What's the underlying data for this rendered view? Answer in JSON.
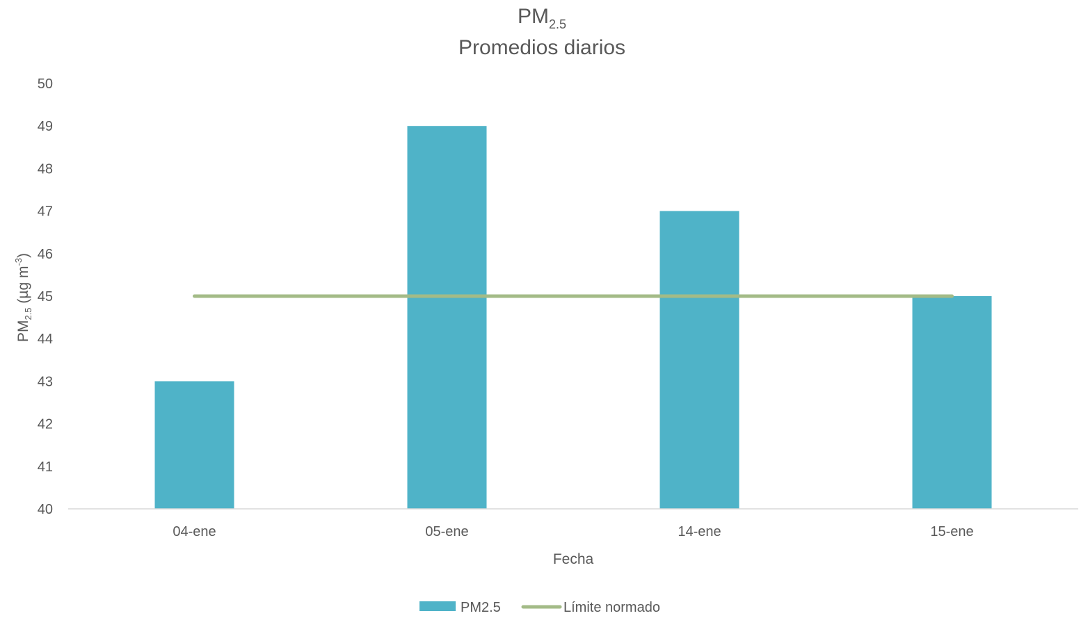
{
  "chart_data": {
    "type": "bar",
    "title": {
      "main": "PM",
      "subscript": "2.5",
      "line2": "Promedios diarios"
    },
    "categories": [
      "04-ene",
      "05-ene",
      "14-ene",
      "15-ene"
    ],
    "series": [
      {
        "name": "PM2.5",
        "kind": "bar",
        "color": "#4fb3c8",
        "values": [
          43,
          49,
          47,
          45
        ]
      },
      {
        "name": "Límite normado",
        "kind": "line",
        "color": "#a3bb87",
        "values": [
          45,
          45,
          45,
          45
        ]
      }
    ],
    "xlabel": "Fecha",
    "ylabel": {
      "main": "PM",
      "subscript": "2.5",
      "unit": " (µg m",
      "superscript": "-3",
      "close": ")"
    },
    "ylim": [
      40,
      50
    ],
    "yticks": [
      "40",
      "41",
      "42",
      "43",
      "44",
      "45",
      "46",
      "47",
      "48",
      "49",
      "50"
    ],
    "grid": false,
    "legend_position": "bottom"
  }
}
